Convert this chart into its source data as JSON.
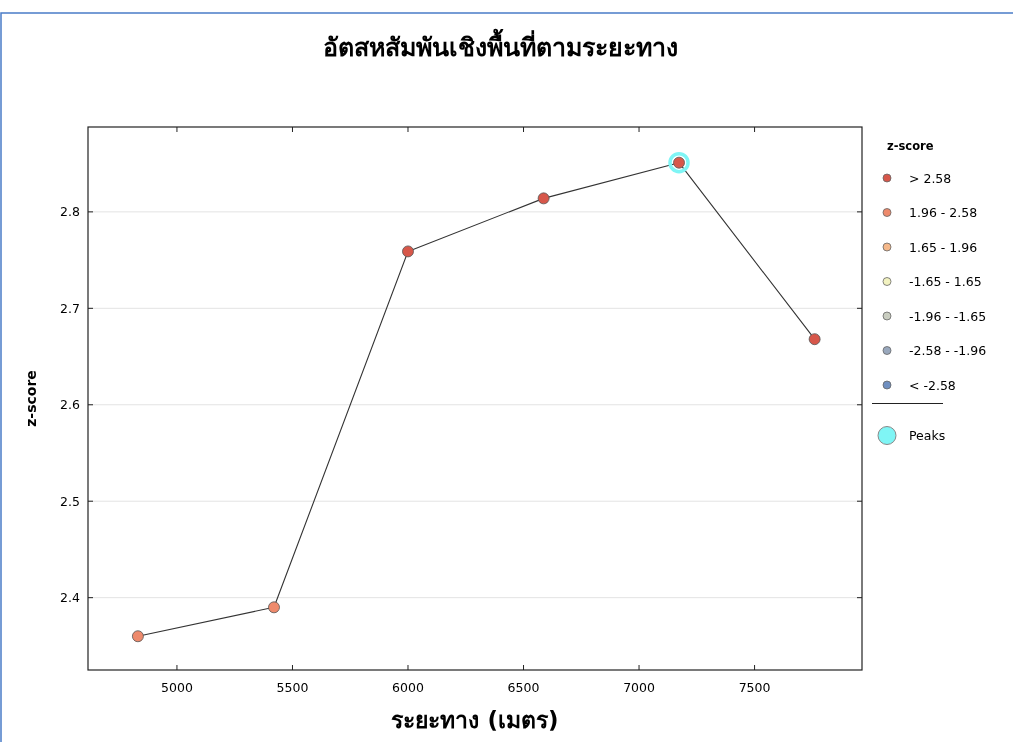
{
  "chart_data": {
    "type": "scatter",
    "title": "อัตสหสัมพันเชิงพื้นที่ตามระยะทาง",
    "xlabel": "ระยะทาง  (เมตร)",
    "ylabel": "z-score",
    "legend_title": "z-score",
    "x": [
      4831,
      5420,
      6000,
      6587,
      7173,
      7760
    ],
    "series": [
      {
        "type": "line",
        "color": "#333333",
        "line_style": "solid",
        "marker": "none",
        "values": [
          2.36,
          2.39,
          2.759,
          2.814,
          2.851,
          2.668
        ]
      },
      {
        "name": "> 2.58",
        "color": "#d7574a",
        "values": [
          null,
          null,
          2.759,
          2.814,
          2.851,
          2.668
        ]
      },
      {
        "name": "1.96 - 2.58",
        "color": "#ee8a6c",
        "values": [
          2.36,
          2.39,
          null,
          null,
          null,
          null
        ]
      },
      {
        "name": "1.65 - 1.96",
        "color": "#f5b88a",
        "values": [
          null,
          null,
          null,
          null,
          null,
          null
        ]
      },
      {
        "name": "-1.65 - 1.65",
        "color": "#f2f2c0",
        "values": [
          null,
          null,
          null,
          null,
          null,
          null
        ]
      },
      {
        "name": "-1.96 - -1.65",
        "color": "#c9cdc0",
        "values": [
          null,
          null,
          null,
          null,
          null,
          null
        ]
      },
      {
        "name": "-2.58 - -1.96",
        "color": "#99a8bd",
        "values": [
          null,
          null,
          null,
          null,
          null,
          null
        ]
      },
      {
        "name": "< -2.58",
        "color": "#6f8fc0",
        "values": [
          null,
          null,
          null,
          null,
          null,
          null
        ]
      },
      {
        "name": "Peaks",
        "color": "#7ff5f5",
        "values": [
          null,
          null,
          null,
          null,
          2.851,
          null
        ]
      }
    ],
    "xlim": [
      4615,
      7965
    ],
    "ylim": [
      2.325,
      2.888
    ],
    "xticks": [
      5000,
      5500,
      6000,
      6500,
      7000,
      7500
    ],
    "yticks": [
      2.4,
      2.5,
      2.6,
      2.7,
      2.8
    ],
    "grid": "y",
    "legend": "right",
    "marker": "circle"
  }
}
